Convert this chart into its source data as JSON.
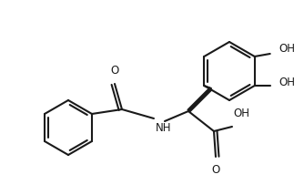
{
  "background": "#ffffff",
  "line_color": "#1a1a1a",
  "line_width": 1.5,
  "text_color": "#1a1a1a",
  "font_size": 8.5,
  "figsize": [
    3.34,
    2.14
  ],
  "dpi": 100,
  "xlim": [
    0,
    334
  ],
  "ylim": [
    0,
    214
  ]
}
